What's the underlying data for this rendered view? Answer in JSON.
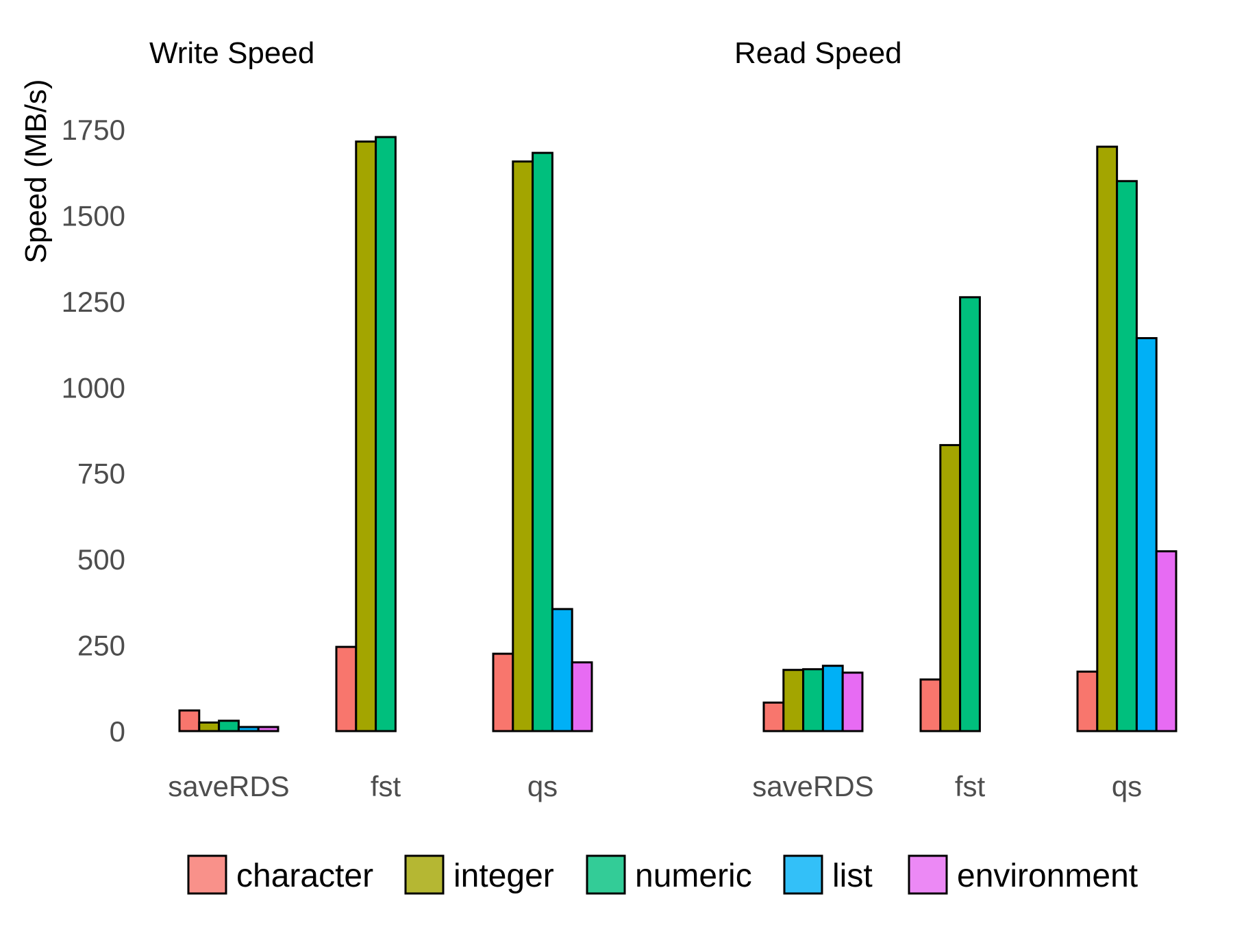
{
  "chart_data": {
    "type": "bar",
    "ylabel": "Speed (MB/s)",
    "ylim": [
      0,
      1750
    ],
    "yticks": [
      0,
      250,
      500,
      750,
      1000,
      1250,
      1500,
      1750
    ],
    "legend_position": "bottom",
    "grid": false,
    "series": [
      {
        "name": "character",
        "color": "#F8766D"
      },
      {
        "name": "integer",
        "color": "#A3A500"
      },
      {
        "name": "numeric",
        "color": "#00BF7D"
      },
      {
        "name": "list",
        "color": "#00B0F6"
      },
      {
        "name": "environment",
        "color": "#E76BF3"
      }
    ],
    "panels": [
      {
        "title": "Write Speed",
        "categories": [
          "saveRDS",
          "fst",
          "qs"
        ],
        "values": {
          "saveRDS": {
            "character": 60,
            "integer": 25,
            "numeric": 30,
            "list": 12,
            "environment": 12
          },
          "fst": {
            "character": 245,
            "integer": 1715,
            "numeric": 1728
          },
          "qs": {
            "character": 225,
            "integer": 1657,
            "numeric": 1682,
            "list": 355,
            "environment": 200
          }
        }
      },
      {
        "title": "Read Speed",
        "categories": [
          "saveRDS",
          "fst",
          "qs"
        ],
        "values": {
          "saveRDS": {
            "character": 83,
            "integer": 178,
            "numeric": 180,
            "list": 190,
            "environment": 170
          },
          "fst": {
            "character": 150,
            "integer": 832,
            "numeric": 1262
          },
          "qs": {
            "character": 173,
            "integer": 1700,
            "numeric": 1600,
            "list": 1143,
            "environment": 523
          }
        }
      }
    ]
  }
}
